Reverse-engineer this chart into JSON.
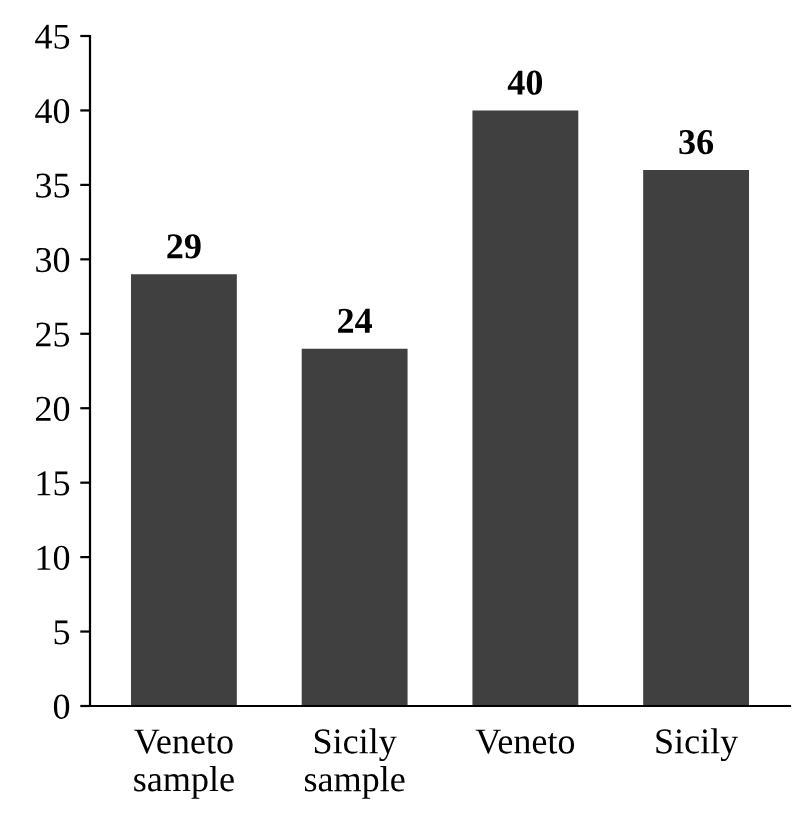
{
  "chart_data": {
    "type": "bar",
    "categories": [
      "Veneto\nsample",
      "Sicily\nsample",
      "Veneto",
      "Sicily"
    ],
    "values": [
      29,
      24,
      40,
      36
    ],
    "color": "#404040",
    "ylim": [
      0,
      45
    ],
    "yticks": [
      0,
      5,
      10,
      15,
      20,
      25,
      30,
      35,
      40,
      45
    ],
    "data_labels": true,
    "grid": false
  }
}
